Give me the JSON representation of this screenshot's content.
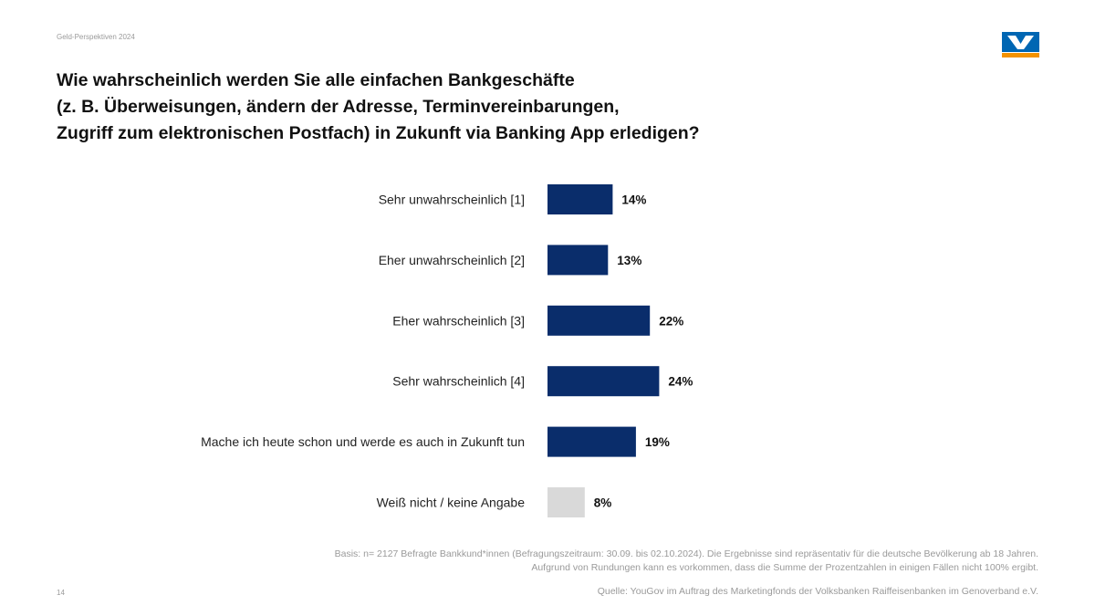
{
  "header": {
    "label": "Geld-Perspektiven 2024"
  },
  "title": {
    "line1": "Wie wahrscheinlich werden Sie alle einfachen Bankgeschäfte",
    "line2": "(z. B. Überweisungen, ändern der Adresse, Terminvereinbarungen,",
    "line3": "Zugriff zum elektronischen Postfach) in Zukunft via Banking App erledigen?"
  },
  "colors": {
    "primary_bar": "#0a2d6b",
    "neutral_bar": "#d9d9d9",
    "logo_blue": "#0066b3",
    "logo_orange": "#f39200"
  },
  "chart_data": {
    "type": "bar",
    "orientation": "horizontal",
    "categories": [
      "Sehr unwahrscheinlich [1]",
      "Eher unwahrscheinlich [2]",
      "Eher wahrscheinlich [3]",
      "Sehr wahrscheinlich [4]",
      "Mache ich heute schon und werde es auch in Zukunft tun",
      "Weiß nicht / keine Angabe"
    ],
    "values": [
      14,
      13,
      22,
      24,
      19,
      8
    ],
    "value_labels": [
      "14%",
      "13%",
      "22%",
      "24%",
      "19%",
      "8%"
    ],
    "unit": "%",
    "xlim": [
      0,
      100
    ],
    "grid": false,
    "highlight": [
      "primary",
      "primary",
      "primary",
      "primary",
      "primary",
      "neutral"
    ]
  },
  "footer": {
    "basis_line1": "Basis: n= 2127 Befragte Bankkund*innen (Befragungszeitraum: 30.09. bis 02.10.2024). Die Ergebnisse sind repräsentativ für die deutsche Bevölkerung ab 18 Jahren.",
    "basis_line2": "Aufgrund von Rundungen kann es vorkommen, dass die Summe der Prozentzahlen in einigen Fällen nicht 100% ergibt.",
    "page_number": "14",
    "source": "Quelle: YouGov im Auftrag des Marketingfonds der Volksbanken Raiffeisenbanken im Genoverband e.V."
  }
}
